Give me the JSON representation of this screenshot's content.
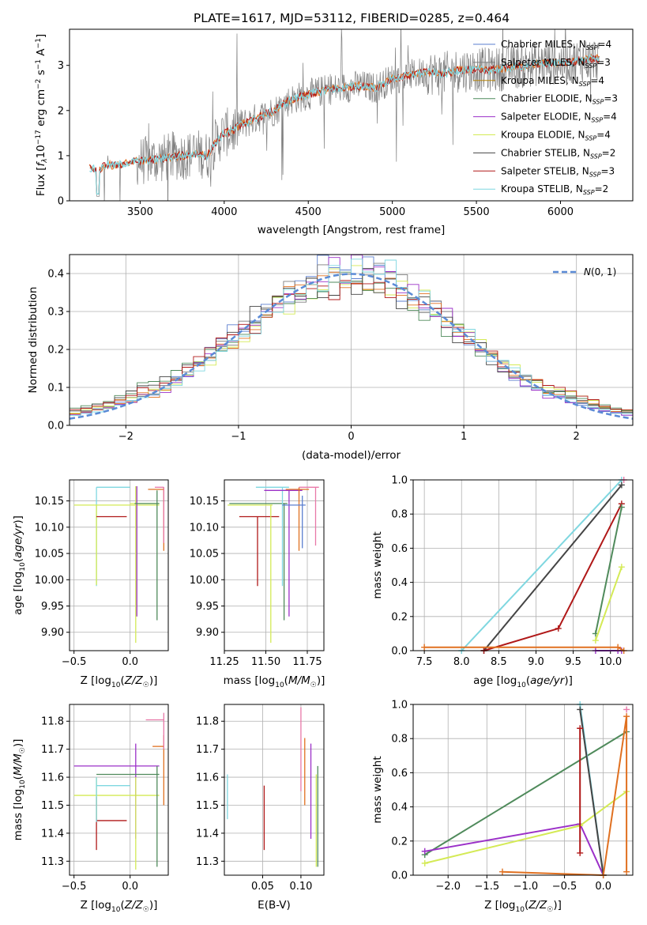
{
  "figure": {
    "title": "PLATE=1617, MJD=53112, FIBERID=0285, z=0.464"
  },
  "chart_data": [
    {
      "type": "line",
      "panel": "spectrum",
      "xlabel": "wavelength [Angstrom, rest frame]",
      "ylabel": "Flux [f_λ 10^-17 erg cm^-2 s^-1 A^-1]",
      "xlim": [
        3080,
        6430
      ],
      "ylim": [
        0,
        3.8
      ],
      "xticks": [
        "3500",
        "4000",
        "4500",
        "5000",
        "5500",
        "6000"
      ],
      "yticks": [
        "0",
        "1",
        "2",
        "3"
      ],
      "grid": false,
      "legend_position": "right",
      "data_profile": {
        "x": [
          3200,
          3250,
          3300,
          3350,
          3400,
          3450,
          3500,
          3550,
          3600,
          3650,
          3700,
          3750,
          3800,
          3850,
          3900,
          3950,
          4000,
          4050,
          4100,
          4150,
          4200,
          4300,
          4400,
          4500,
          4600,
          4700,
          4800,
          4900,
          5000,
          5100,
          5200,
          5300,
          5400,
          5500,
          5600,
          5700,
          5800,
          5900,
          6000,
          6100,
          6200
        ],
        "y": [
          0.72,
          0.68,
          0.8,
          0.78,
          0.82,
          0.86,
          0.88,
          0.9,
          0.92,
          0.95,
          0.98,
          1.0,
          1.02,
          1.05,
          1.0,
          1.3,
          1.5,
          1.55,
          1.7,
          1.75,
          1.85,
          2.0,
          2.25,
          2.35,
          2.45,
          2.5,
          2.55,
          2.5,
          2.7,
          2.78,
          2.85,
          2.8,
          2.9,
          2.9,
          2.9,
          2.95,
          3.0,
          3.05,
          3.05,
          3.1,
          3.15
        ]
      },
      "series": [
        {
          "name": "Chabrier MILES, N_SSP=4",
          "color": "#5b7fcf"
        },
        {
          "name": "Salpeter MILES, N_SSP=3",
          "color": "#7e7e7e"
        },
        {
          "name": "Kroupa MILES, N_SSP=4",
          "color": "#b8860b"
        },
        {
          "name": "Chabrier ELODIE, N_SSP=3",
          "color": "#4f8a5b"
        },
        {
          "name": "Salpeter ELODIE, N_SSP=4",
          "color": "#9b30c8"
        },
        {
          "name": "Kroupa ELODIE, N_SSP=4",
          "color": "#d4ea55"
        },
        {
          "name": "Chabrier STELIB, N_SSP=2",
          "color": "#444444"
        },
        {
          "name": "Salpeter STELIB, N_SSP=3",
          "color": "#b01818"
        },
        {
          "name": "Kroupa STELIB, N_SSP=2",
          "color": "#7fd7e0"
        }
      ],
      "data_color": "#808080",
      "model_color": "#e07020"
    },
    {
      "type": "histogram",
      "panel": "residuals",
      "xlabel": "(data-model)/error",
      "ylabel": "Normed distribution",
      "xlim": [
        -2.5,
        2.5
      ],
      "ylim": [
        0,
        0.45
      ],
      "xticks": [
        "−2",
        "−1",
        "0",
        "1",
        "2"
      ],
      "yticks": [
        "0.0",
        "0.1",
        "0.2",
        "0.3",
        "0.4"
      ],
      "grid": true,
      "legend": {
        "label": "N(0,1)",
        "position": "top-right",
        "color": "#5b8bd6"
      },
      "bin_width": 0.1,
      "colors": [
        "#5b7fcf",
        "#7e7e7e",
        "#d4ea55",
        "#4f8a5b",
        "#9b30c8",
        "#e07020",
        "#444444",
        "#b01818",
        "#7fd7e0"
      ]
    },
    {
      "type": "errorbar",
      "panel": "age-vs-Z",
      "xlabel": "Z [log10(Z/Z☉)]",
      "ylabel": "age [log10(age/yr)]",
      "xlim": [
        -0.54,
        0.34
      ],
      "ylim": [
        9.865,
        10.19
      ],
      "xticks": [
        {
          "v": -0.5,
          "t": "−0.5"
        },
        {
          "v": 0.0,
          "t": "0.0"
        }
      ],
      "yticks": [
        {
          "v": 9.9,
          "t": "9.90"
        },
        {
          "v": 9.95,
          "t": "9.95"
        },
        {
          "v": 10.0,
          "t": "10.00"
        },
        {
          "v": 10.05,
          "t": "10.05"
        },
        {
          "v": 10.1,
          "t": "10.10"
        },
        {
          "v": 10.15,
          "t": "10.15"
        }
      ],
      "points": [
        {
          "x": -0.3,
          "y": 10.176,
          "x0": -0.3,
          "x1": 0.0,
          "y0": 9.988,
          "y1": 10.176,
          "color": "#7fd7e0"
        },
        {
          "x": -0.3,
          "y": 10.142,
          "x0": -0.5,
          "x1": 0.26,
          "y0": 9.99,
          "y1": 10.142,
          "color": "#d4ea55"
        },
        {
          "x": -0.3,
          "y": 10.12,
          "x0": -0.3,
          "x1": -0.03,
          "y0": 10.12,
          "y1": 10.12,
          "color": "#b01818"
        },
        {
          "x": 0.05,
          "y": 10.145,
          "x0": 0.0,
          "x1": 0.26,
          "y0": 9.88,
          "y1": 10.178,
          "color": "#d4ea55"
        },
        {
          "x": 0.06,
          "y": 10.17,
          "x0": 0.06,
          "x1": 0.06,
          "y0": 9.93,
          "y1": 10.178,
          "color": "#9b30c8"
        },
        {
          "x": 0.24,
          "y": 10.145,
          "x0": 0.04,
          "x1": 0.26,
          "y0": 9.923,
          "y1": 10.17,
          "color": "#4f8a5b"
        },
        {
          "x": 0.3,
          "y": 10.172,
          "x0": 0.16,
          "x1": 0.3,
          "y0": 10.055,
          "y1": 10.176,
          "color": "#e07020"
        },
        {
          "x": 0.3,
          "y": 10.176,
          "x0": 0.22,
          "x1": 0.3,
          "y0": 10.07,
          "y1": 10.176,
          "color": "#e878a8"
        }
      ]
    },
    {
      "type": "errorbar",
      "panel": "age-vs-mass",
      "xlabel": "mass [log10(M/M☉)]",
      "xlim": [
        11.25,
        11.85
      ],
      "ylim": [
        9.865,
        10.19
      ],
      "xticks": [
        {
          "v": 11.25,
          "t": "11.25"
        },
        {
          "v": 11.5,
          "t": "11.50"
        },
        {
          "v": 11.75,
          "t": "11.75"
        }
      ],
      "yticks": [
        {
          "v": 9.9,
          "t": "9.90"
        },
        {
          "v": 9.95,
          "t": "9.95"
        },
        {
          "v": 10.0,
          "t": "10.00"
        },
        {
          "v": 10.05,
          "t": "10.05"
        },
        {
          "v": 10.1,
          "t": "10.10"
        },
        {
          "v": 10.15,
          "t": "10.15"
        }
      ],
      "points": [
        {
          "x": 11.45,
          "y": 10.12,
          "x0": 11.34,
          "x1": 11.58,
          "y0": 9.988,
          "y1": 10.12,
          "color": "#b01818"
        },
        {
          "x": 11.53,
          "y": 10.142,
          "x0": 11.27,
          "x1": 11.54,
          "y0": 9.88,
          "y1": 10.142,
          "color": "#d4ea55"
        },
        {
          "x": 11.61,
          "y": 10.145,
          "x0": 11.28,
          "x1": 11.63,
          "y0": 9.923,
          "y1": 10.145,
          "color": "#4f8a5b"
        },
        {
          "x": 11.6,
          "y": 10.176,
          "x0": 11.44,
          "x1": 11.64,
          "y0": 9.988,
          "y1": 10.176,
          "color": "#7fd7e0"
        },
        {
          "x": 11.64,
          "y": 10.17,
          "x0": 11.49,
          "x1": 11.72,
          "y0": 9.93,
          "y1": 10.17,
          "color": "#9b30c8"
        },
        {
          "x": 11.7,
          "y": 10.172,
          "x0": 11.62,
          "x1": 11.76,
          "y0": 10.055,
          "y1": 10.176,
          "color": "#e07020"
        },
        {
          "x": 11.72,
          "y": 10.142,
          "x0": 11.6,
          "x1": 11.74,
          "y0": 10.06,
          "y1": 10.16,
          "color": "#5b7fcf"
        },
        {
          "x": 11.8,
          "y": 10.176,
          "x0": 11.7,
          "x1": 11.82,
          "y0": 10.065,
          "y1": 10.176,
          "color": "#e878a8"
        }
      ]
    },
    {
      "type": "line",
      "panel": "mass-weight-vs-age",
      "xlabel": "age [log10(age/yr)]",
      "ylabel": "mass weight",
      "xlim": [
        7.35,
        10.3
      ],
      "ylim": [
        0,
        1
      ],
      "xticks": [
        {
          "v": 7.5,
          "t": "7.5"
        },
        {
          "v": 8.0,
          "t": "8.0"
        },
        {
          "v": 8.5,
          "t": "8.5"
        },
        {
          "v": 9.0,
          "t": "9.0"
        },
        {
          "v": 9.5,
          "t": "9.5"
        },
        {
          "v": 10.0,
          "t": "10.0"
        }
      ],
      "yticks": [
        {
          "v": 0.0,
          "t": "0.0"
        },
        {
          "v": 0.2,
          "t": "0.2"
        },
        {
          "v": 0.4,
          "t": "0.4"
        },
        {
          "v": 0.6,
          "t": "0.6"
        },
        {
          "v": 0.8,
          "t": "0.8"
        },
        {
          "v": 1.0,
          "t": "1.0"
        }
      ],
      "grid": true,
      "series": [
        {
          "color": "#7fd7e0",
          "x": [
            8.0,
            10.15
          ],
          "y": [
            0.0,
            1.0
          ]
        },
        {
          "color": "#444444",
          "x": [
            8.3,
            10.15
          ],
          "y": [
            0.0,
            0.97
          ]
        },
        {
          "color": "#b01818",
          "x": [
            8.3,
            9.3,
            10.15
          ],
          "y": [
            0.0,
            0.13,
            0.86
          ]
        },
        {
          "color": "#4f8a5b",
          "x": [
            9.8,
            10.15
          ],
          "y": [
            0.1,
            0.84
          ]
        },
        {
          "color": "#d4ea55",
          "x": [
            9.8,
            10.15
          ],
          "y": [
            0.06,
            0.49
          ]
        },
        {
          "color": "#9b30c8",
          "x": [
            9.8,
            10.1,
            10.15
          ],
          "y": [
            0.0,
            0.0,
            0.0
          ]
        },
        {
          "color": "#e07020",
          "x": [
            7.5,
            10.1,
            10.18
          ],
          "y": [
            0.02,
            0.02,
            0.0
          ]
        },
        {
          "color": "#e878a8",
          "x": [
            10.18
          ],
          "y": [
            1.0
          ]
        }
      ]
    },
    {
      "type": "errorbar",
      "panel": "mass-vs-Z",
      "xlabel": "Z [log10(Z/Z☉)]",
      "ylabel": "mass [log10(M/M☉)]",
      "xlim": [
        -0.54,
        0.34
      ],
      "ylim": [
        11.25,
        11.86
      ],
      "xticks": [
        {
          "v": -0.5,
          "t": "−0.5"
        },
        {
          "v": 0.0,
          "t": "0.0"
        }
      ],
      "yticks": [
        {
          "v": 11.3,
          "t": "11.3"
        },
        {
          "v": 11.4,
          "t": "11.4"
        },
        {
          "v": 11.5,
          "t": "11.5"
        },
        {
          "v": 11.6,
          "t": "11.6"
        },
        {
          "v": 11.7,
          "t": "11.7"
        },
        {
          "v": 11.8,
          "t": "11.8"
        }
      ],
      "points": [
        {
          "x": -0.3,
          "y": 11.445,
          "x0": -0.3,
          "x1": -0.03,
          "y0": 11.34,
          "y1": 11.53,
          "color": "#b01818"
        },
        {
          "x": -0.3,
          "y": 11.535,
          "x0": -0.5,
          "x1": 0.26,
          "y0": 11.45,
          "y1": 11.6,
          "color": "#d4ea55"
        },
        {
          "x": -0.3,
          "y": 11.57,
          "x0": -0.3,
          "x1": 0.0,
          "y0": 11.44,
          "y1": 11.6,
          "color": "#7fd7e0"
        },
        {
          "x": 0.05,
          "y": 11.64,
          "x0": -0.5,
          "x1": 0.26,
          "y0": 11.38,
          "y1": 11.72,
          "color": "#9b30c8"
        },
        {
          "x": 0.05,
          "y": 11.535,
          "x0": 0.05,
          "x1": 0.05,
          "y0": 11.27,
          "y1": 11.6,
          "color": "#d4ea55"
        },
        {
          "x": 0.24,
          "y": 11.61,
          "x0": -0.3,
          "x1": 0.26,
          "y0": 11.28,
          "y1": 11.64,
          "color": "#4f8a5b"
        },
        {
          "x": 0.3,
          "y": 11.71,
          "x0": 0.2,
          "x1": 0.3,
          "y0": 11.5,
          "y1": 11.75,
          "color": "#e07020"
        },
        {
          "x": 0.3,
          "y": 11.805,
          "x0": 0.14,
          "x1": 0.3,
          "y0": 11.7,
          "y1": 11.83,
          "color": "#e878a8"
        }
      ]
    },
    {
      "type": "errorbar",
      "panel": "mass-vs-ebv",
      "xlabel": "E(B-V)",
      "xlim": [
        0.0,
        0.13
      ],
      "ylim": [
        11.25,
        11.86
      ],
      "xticks": [
        {
          "v": 0.05,
          "t": "0.05"
        },
        {
          "v": 0.1,
          "t": "0.10"
        }
      ],
      "yticks": [
        {
          "v": 11.3,
          "t": "11.3"
        },
        {
          "v": 11.4,
          "t": "11.4"
        },
        {
          "v": 11.5,
          "t": "11.5"
        },
        {
          "v": 11.6,
          "t": "11.6"
        },
        {
          "v": 11.7,
          "t": "11.7"
        },
        {
          "v": 11.8,
          "t": "11.8"
        }
      ],
      "points": [
        {
          "x": 0.004,
          "y": 11.53,
          "x0": 0.004,
          "x1": 0.004,
          "y0": 11.45,
          "y1": 11.61,
          "color": "#7fd7e0"
        },
        {
          "x": 0.052,
          "y": 11.445,
          "x0": 0.052,
          "x1": 0.052,
          "y0": 11.34,
          "y1": 11.57,
          "color": "#b01818"
        },
        {
          "x": 0.1,
          "y": 11.7,
          "x0": 0.1,
          "x1": 0.1,
          "y0": 11.55,
          "y1": 11.85,
          "color": "#e878a8"
        },
        {
          "x": 0.105,
          "y": 11.6,
          "x0": 0.105,
          "x1": 0.105,
          "y0": 11.5,
          "y1": 11.74,
          "color": "#e07020"
        },
        {
          "x": 0.113,
          "y": 11.55,
          "x0": 0.113,
          "x1": 0.113,
          "y0": 11.38,
          "y1": 11.72,
          "color": "#9b30c8"
        },
        {
          "x": 0.12,
          "y": 11.5,
          "x0": 0.12,
          "x1": 0.12,
          "y0": 11.28,
          "y1": 11.61,
          "color": "#d4ea55"
        },
        {
          "x": 0.122,
          "y": 11.5,
          "x0": 0.122,
          "x1": 0.122,
          "y0": 11.28,
          "y1": 11.64,
          "color": "#4f8a5b"
        }
      ]
    },
    {
      "type": "line",
      "panel": "mass-weight-vs-Z",
      "xlabel": "Z [log10(Z/Z☉)]",
      "ylabel": "mass weight",
      "xlim": [
        -2.45,
        0.38
      ],
      "ylim": [
        0,
        1
      ],
      "xticks": [
        {
          "v": -2.0,
          "t": "−2.0"
        },
        {
          "v": -1.5,
          "t": "−1.5"
        },
        {
          "v": -1.0,
          "t": "−1.0"
        },
        {
          "v": -0.5,
          "t": "−0.5"
        },
        {
          "v": 0.0,
          "t": "0.0"
        }
      ],
      "yticks": [
        {
          "v": 0.0,
          "t": "0.0"
        },
        {
          "v": 0.2,
          "t": "0.2"
        },
        {
          "v": 0.4,
          "t": "0.4"
        },
        {
          "v": 0.6,
          "t": "0.6"
        },
        {
          "v": 0.8,
          "t": "0.8"
        },
        {
          "v": 1.0,
          "t": "1.0"
        }
      ],
      "grid": true,
      "series": [
        {
          "color": "#4f8a5b",
          "x": [
            -2.3,
            0.3
          ],
          "y": [
            0.12,
            0.84
          ]
        },
        {
          "color": "#9b30c8",
          "x": [
            -2.3,
            -0.3,
            0.0
          ],
          "y": [
            0.14,
            0.3,
            0.0
          ]
        },
        {
          "color": "#d4ea55",
          "x": [
            -2.3,
            -0.3,
            0.3
          ],
          "y": [
            0.07,
            0.29,
            0.49
          ]
        },
        {
          "color": "#7fd7e0",
          "x": [
            -0.3,
            0.0
          ],
          "y": [
            1.0,
            0.0
          ]
        },
        {
          "color": "#444444",
          "x": [
            -0.3,
            0.0
          ],
          "y": [
            0.97,
            0.0
          ]
        },
        {
          "color": "#b01818",
          "x": [
            -0.3,
            -0.3
          ],
          "y": [
            0.86,
            0.13
          ]
        },
        {
          "color": "#e07020",
          "x": [
            -1.3,
            0.0,
            0.3,
            0.3
          ],
          "y": [
            0.02,
            0.0,
            0.93,
            0.02
          ]
        },
        {
          "color": "#e878a8",
          "x": [
            0.3
          ],
          "y": [
            0.97
          ]
        }
      ]
    }
  ]
}
